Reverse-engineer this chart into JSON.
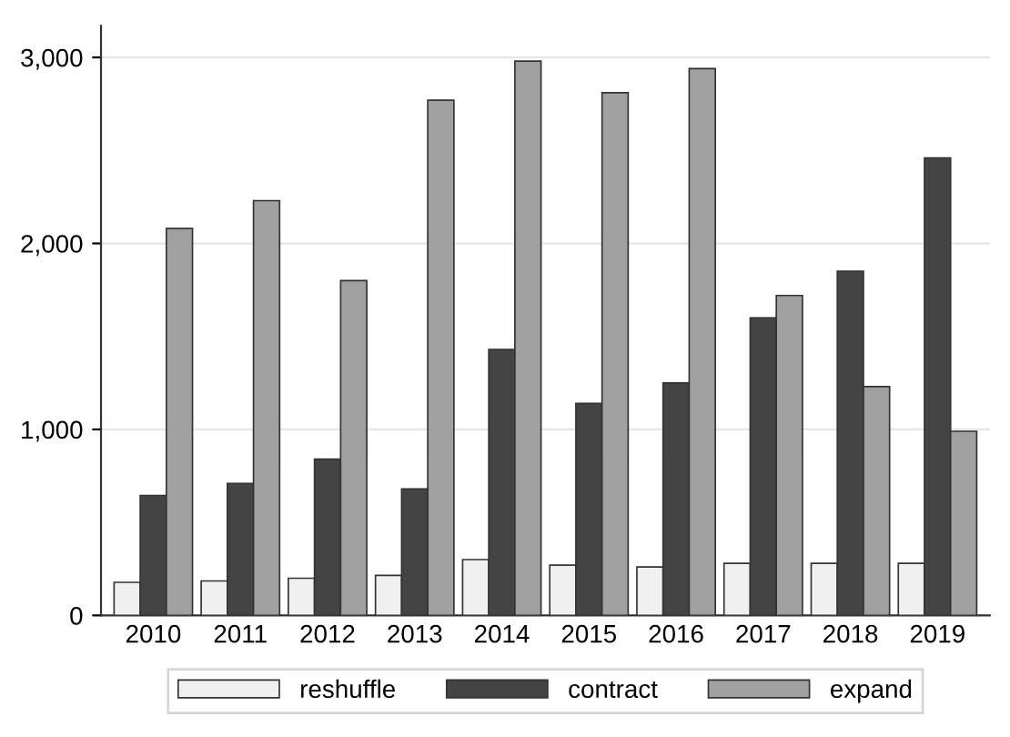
{
  "chart_data": {
    "type": "bar",
    "categories": [
      "2010",
      "2011",
      "2012",
      "2013",
      "2014",
      "2015",
      "2016",
      "2017",
      "2018",
      "2019"
    ],
    "series": [
      {
        "name": "reshuffle",
        "color": "#f0f0f0",
        "values": [
          178,
          185,
          200,
          215,
          300,
          270,
          260,
          280,
          280,
          280
        ]
      },
      {
        "name": "contract",
        "color": "#444444",
        "values": [
          645,
          710,
          840,
          680,
          1430,
          1140,
          1250,
          1600,
          1850,
          2460
        ]
      },
      {
        "name": "expand",
        "color": "#a0a0a0",
        "values": [
          2080,
          2230,
          1800,
          2770,
          2980,
          2810,
          2940,
          1720,
          1230,
          990
        ]
      }
    ],
    "ylim": [
      0,
      3170
    ],
    "yticks": [
      {
        "value": 0,
        "label": "0"
      },
      {
        "value": 1000,
        "label": "1,000"
      },
      {
        "value": 2000,
        "label": "2,000"
      },
      {
        "value": 3000,
        "label": "3,000"
      }
    ],
    "grid": "y",
    "legend": "bottom"
  }
}
